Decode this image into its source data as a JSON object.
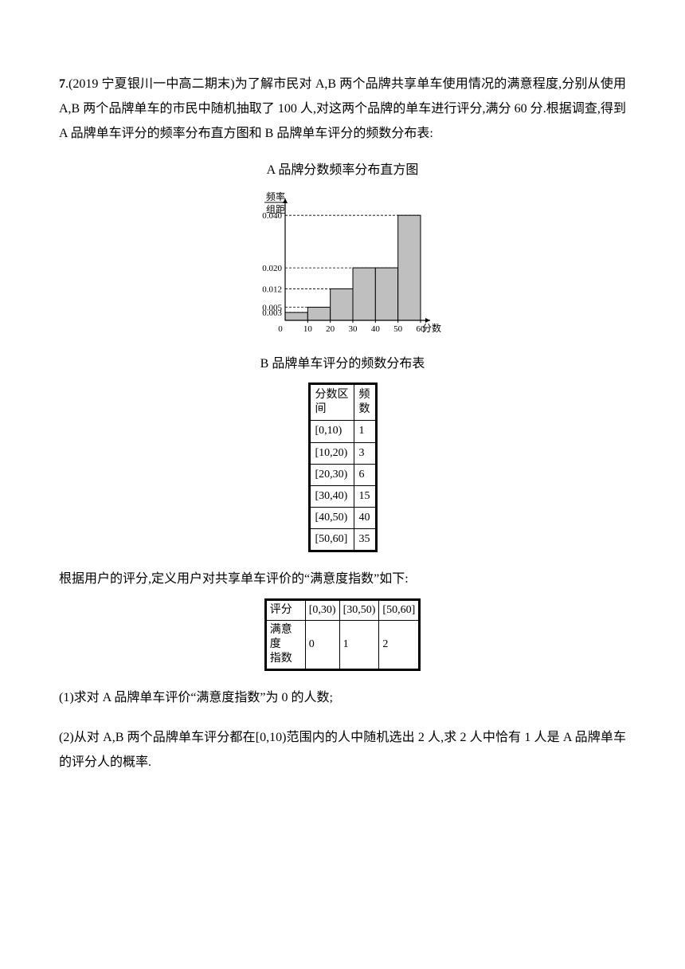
{
  "problem": {
    "number_label": "7",
    "source": ".(2019 宁夏银川一中高二期末)为了解市民对 A,B 两个品牌共享单车使用情况的满意程度,分别从使用 A,B 两个品牌单车的市民中随机抽取了 100 人,对这两个品牌的单车进行评分,满分 60 分.根据调查,得到 A 品牌单车评分的频率分布直方图和 B 品牌单车评分的频数分布表:",
    "chart_title_a": "A 品牌分数频率分布直方图",
    "histogram_a": {
      "type": "histogram",
      "y_axis_label_top": "频率",
      "y_axis_label_bottom": "组距",
      "x_axis_label": "分数",
      "x_ticks": [
        "0",
        "10",
        "20",
        "30",
        "40",
        "50",
        "60"
      ],
      "y_ticks": [
        {
          "label": "0.003",
          "value": 0.003
        },
        {
          "label": "0.005",
          "value": 0.005
        },
        {
          "label": "0.012",
          "value": 0.012
        },
        {
          "label": "0.020",
          "value": 0.02
        },
        {
          "label": "0.040",
          "value": 0.04
        }
      ],
      "bars": [
        {
          "interval": "[0,10)",
          "value": 0.003
        },
        {
          "interval": "[10,20)",
          "value": 0.005
        },
        {
          "interval": "[20,30)",
          "value": 0.012
        },
        {
          "interval": "[30,40)",
          "value": 0.02
        },
        {
          "interval": "[40,50)",
          "value": 0.02
        },
        {
          "interval": "[50,60]",
          "value": 0.04
        }
      ],
      "bar_fill": "#bfbfbf",
      "axis_color": "#000000",
      "dash_color": "#000000",
      "bin_width": 10,
      "y_max": 0.044
    },
    "table_b_title": "B 品牌单车评分的频数分布表",
    "table_b": {
      "type": "table",
      "columns": [
        "分数区间",
        "频数"
      ],
      "col_header_0_line1": "分数区",
      "col_header_0_line2": "间",
      "col_header_1_line1": "频",
      "col_header_1_line2": "数",
      "rows": [
        [
          "[0,10)",
          "1"
        ],
        [
          "[10,20)",
          "3"
        ],
        [
          "[20,30)",
          "6"
        ],
        [
          "[30,40)",
          "15"
        ],
        [
          "[40,50)",
          "40"
        ],
        [
          "[50,60]",
          "35"
        ]
      ]
    },
    "para2": "根据用户的评分,定义用户对共享单车评价的“满意度指数”如下:",
    "table_sat": {
      "type": "table",
      "columns": [
        "评分",
        "[0,30)",
        "[30,50)",
        "[50,60]"
      ],
      "row_header_line1": "满意度",
      "row_header_line2": "指数",
      "row": [
        "0",
        "1",
        "2"
      ]
    },
    "q1": "(1)求对 A 品牌单车评价“满意度指数”为 0 的人数;",
    "q2": "(2)从对 A,B 两个品牌单车评分都在[0,10)范围内的人中随机选出 2 人,求 2 人中恰有 1 人是 A 品牌单车的评分人的概率."
  }
}
